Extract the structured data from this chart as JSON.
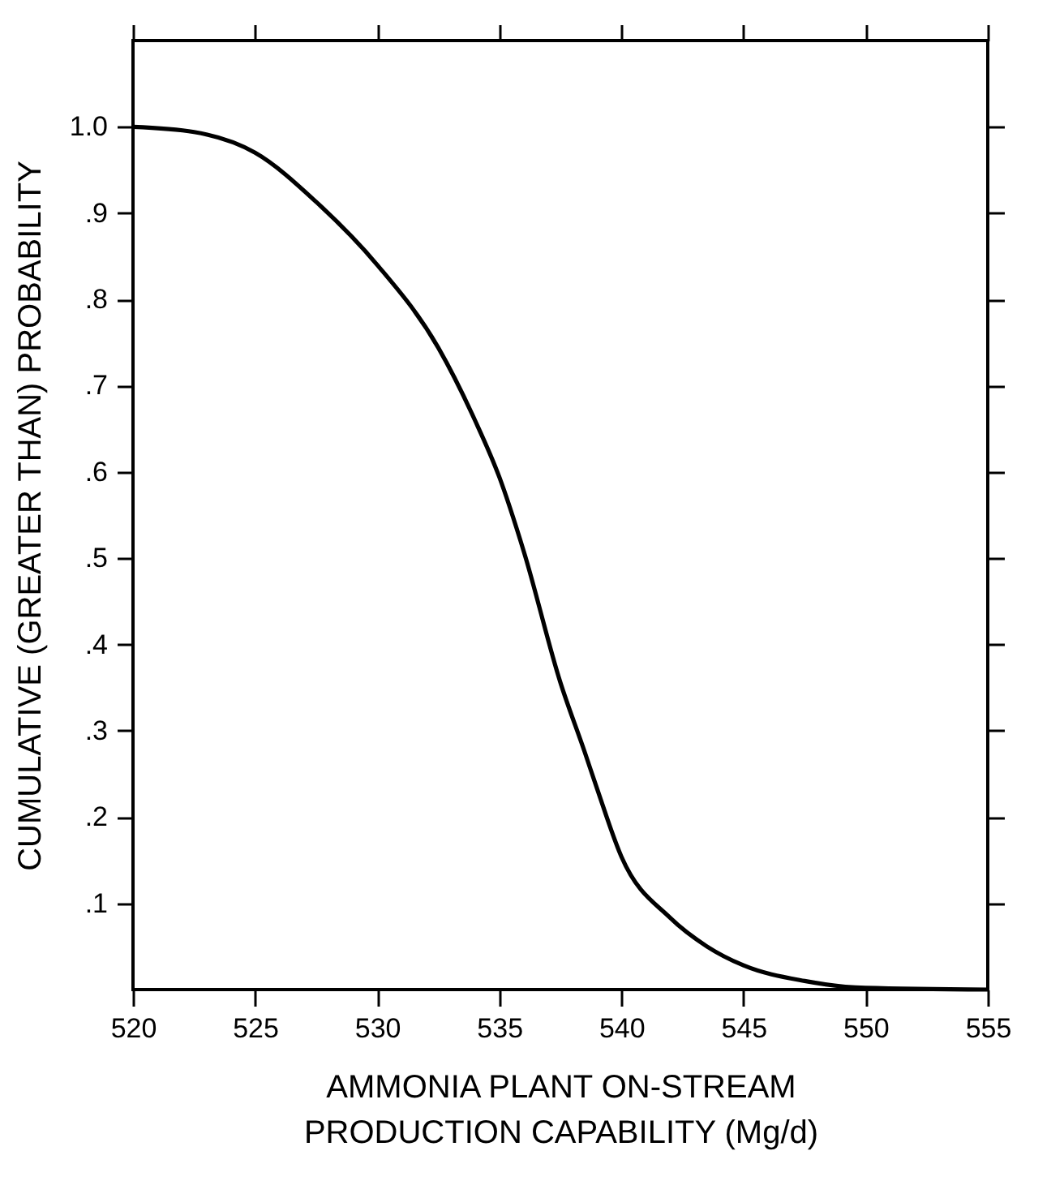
{
  "chart_data": {
    "type": "line",
    "xlabel": "AMMONIA PLANT ON-STREAM\nPRODUCTION CAPABILITY (Mg/d)",
    "ylabel": "CUMULATIVE (GREATER THAN) PROBABILITY",
    "x": [
      520,
      522.5,
      525,
      527.5,
      530,
      532.5,
      534,
      535,
      536,
      537.5,
      538.5,
      539,
      540,
      542,
      543.5,
      545,
      547.5,
      550,
      555
    ],
    "series": [
      {
        "color": "#000000",
        "values": [
          1.0,
          0.994,
          0.97,
          0.913,
          0.84,
          0.744,
          0.66,
          0.594,
          0.508,
          0.356,
          0.275,
          0.233,
          0.154,
          0.083,
          0.05,
          0.028,
          0.01,
          0.002,
          0.0
        ]
      }
    ],
    "xlim": [
      520,
      555
    ],
    "xticks": [
      520,
      525,
      530,
      535,
      540,
      545,
      550,
      555
    ],
    "ylim": [
      0,
      1.1
    ],
    "yticks": [
      {
        "value": 0.1,
        "label": ".1"
      },
      {
        "value": 0.2,
        "label": ".2"
      },
      {
        "value": 0.3,
        "label": ".3"
      },
      {
        "value": 0.4,
        "label": ".4"
      },
      {
        "value": 0.5,
        "label": ".5"
      },
      {
        "value": 0.6,
        "label": ".6"
      },
      {
        "value": 0.7,
        "label": ".7"
      },
      {
        "value": 0.8,
        "label": ".8"
      },
      {
        "value": 0.9,
        "label": ".9"
      },
      {
        "value": 1.0,
        "label": "1.0"
      }
    ],
    "grid": false,
    "marker": "none",
    "line_style": "solid"
  }
}
